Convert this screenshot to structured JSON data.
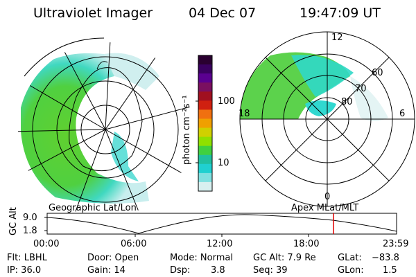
{
  "header": {
    "title": "Ultraviolet Imager",
    "date": "04 Dec 07",
    "time": "19:47:09 UT"
  },
  "colorbar": {
    "unit_label": "photon cm⁻²s⁻¹",
    "ticks": [
      "100",
      "10"
    ],
    "colors": [
      "#2a0030",
      "#3a0060",
      "#5a0090",
      "#7a1060",
      "#a01020",
      "#d02010",
      "#f07010",
      "#f0a000",
      "#d0d000",
      "#90e000",
      "#40d040",
      "#20c0a0",
      "#20d0d0",
      "#80e0e0",
      "#d8f0f0"
    ]
  },
  "left_panel": {
    "label": "Geographic Lat/Lon"
  },
  "right_panel": {
    "label": "Apex MLat/MLT",
    "mlt_labels": {
      "top": "12",
      "left": "18",
      "right": "6",
      "bottom": "0"
    },
    "lat_labels": [
      "60",
      "70",
      "80"
    ]
  },
  "altitude_plot": {
    "ylabel": "GC Alt",
    "y_ticks": [
      "9.0",
      "1.8"
    ],
    "x_ticks": [
      "00:00",
      "06:00",
      "12:00",
      "18:00",
      "23:59"
    ],
    "marker_color": "#e00000"
  },
  "status": {
    "flt": "Flt: LBHL",
    "ip": "IP: 36.0",
    "door": "Door: Open",
    "gain": "Gain: 14",
    "mode": "Mode: Normal",
    "dsp_label": "Dsp:",
    "dsp_value": "3.8",
    "gcalt": "GC Alt: 7.9 Re",
    "seq": "Seq: 39",
    "glat_label": "GLat:",
    "glat_value": "−83.8",
    "glon_label": "GLon:",
    "glon_value": "1.5"
  }
}
